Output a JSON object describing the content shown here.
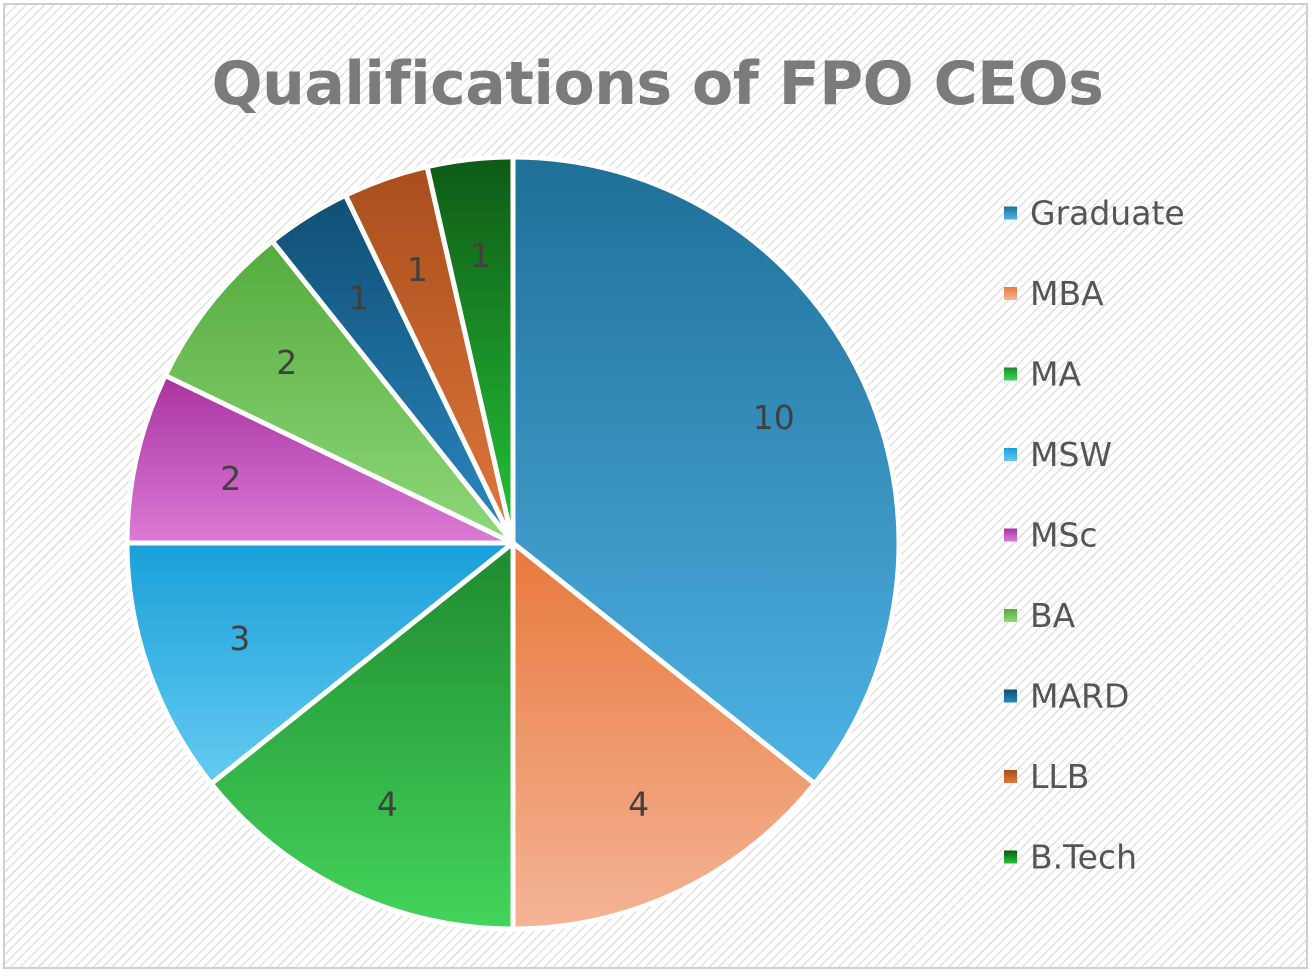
{
  "chart_data": {
    "type": "pie",
    "title": "Qualifications of FPO CEOs",
    "categories": [
      "Graduate",
      "MBA",
      "MA",
      "MSW",
      "MSc",
      "BA",
      "MARD",
      "LLB",
      "B.Tech"
    ],
    "values": [
      10,
      4,
      4,
      3,
      2,
      2,
      1,
      1,
      1
    ],
    "data_labels": [
      "10",
      "4",
      "4",
      "3",
      "2",
      "2",
      "1",
      "1",
      "1"
    ],
    "legend_placement": "right",
    "colors": [
      "#3a9fd0",
      "#ef9a6a",
      "#35b546",
      "#3ab5e6",
      "#c95fc4",
      "#75c95a",
      "#1b6a96",
      "#c9662e",
      "#1c8a28"
    ],
    "gradient_dark": [
      "#1f6f97",
      "#e8793c",
      "#1e8a2e",
      "#1a9fd8",
      "#a9339f",
      "#55ab3c",
      "#0f4f73",
      "#a84e1c",
      "#0f5a16"
    ],
    "gradient_light": [
      "#4fb3e6",
      "#f4b496",
      "#44d45c",
      "#64cbf2",
      "#db7bd6",
      "#8ed87a",
      "#2a88c2",
      "#e0773e",
      "#25c338"
    ]
  }
}
